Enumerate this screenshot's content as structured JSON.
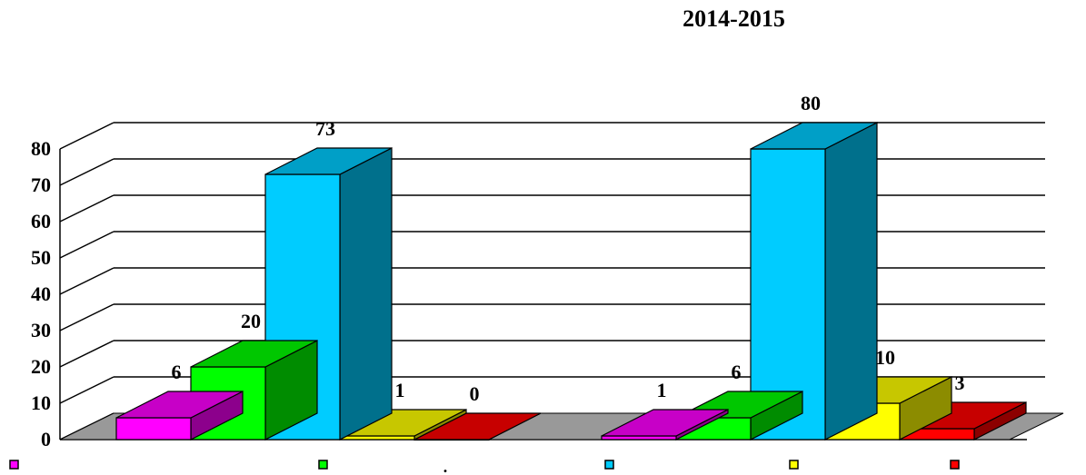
{
  "chart_data": {
    "type": "bar",
    "title": "2014-2015",
    "categories": [
      "",
      ""
    ],
    "series": [
      {
        "values": [
          6,
          1
        ],
        "color": "#ff00ff"
      },
      {
        "values": [
          20,
          6
        ],
        "color": "#00ff00"
      },
      {
        "values": [
          73,
          80
        ],
        "color": "#00ccff"
      },
      {
        "values": [
          1,
          10
        ],
        "color": "#ffff00"
      },
      {
        "values": [
          0,
          3
        ],
        "color": "#ff0000"
      }
    ],
    "ylim": [
      0,
      80
    ],
    "yticks": [
      "0",
      "10",
      "20",
      "30",
      "40",
      "50",
      "60",
      "70",
      "80"
    ],
    "grid": true,
    "legend_position": "bottom",
    "legend_separator": "."
  }
}
